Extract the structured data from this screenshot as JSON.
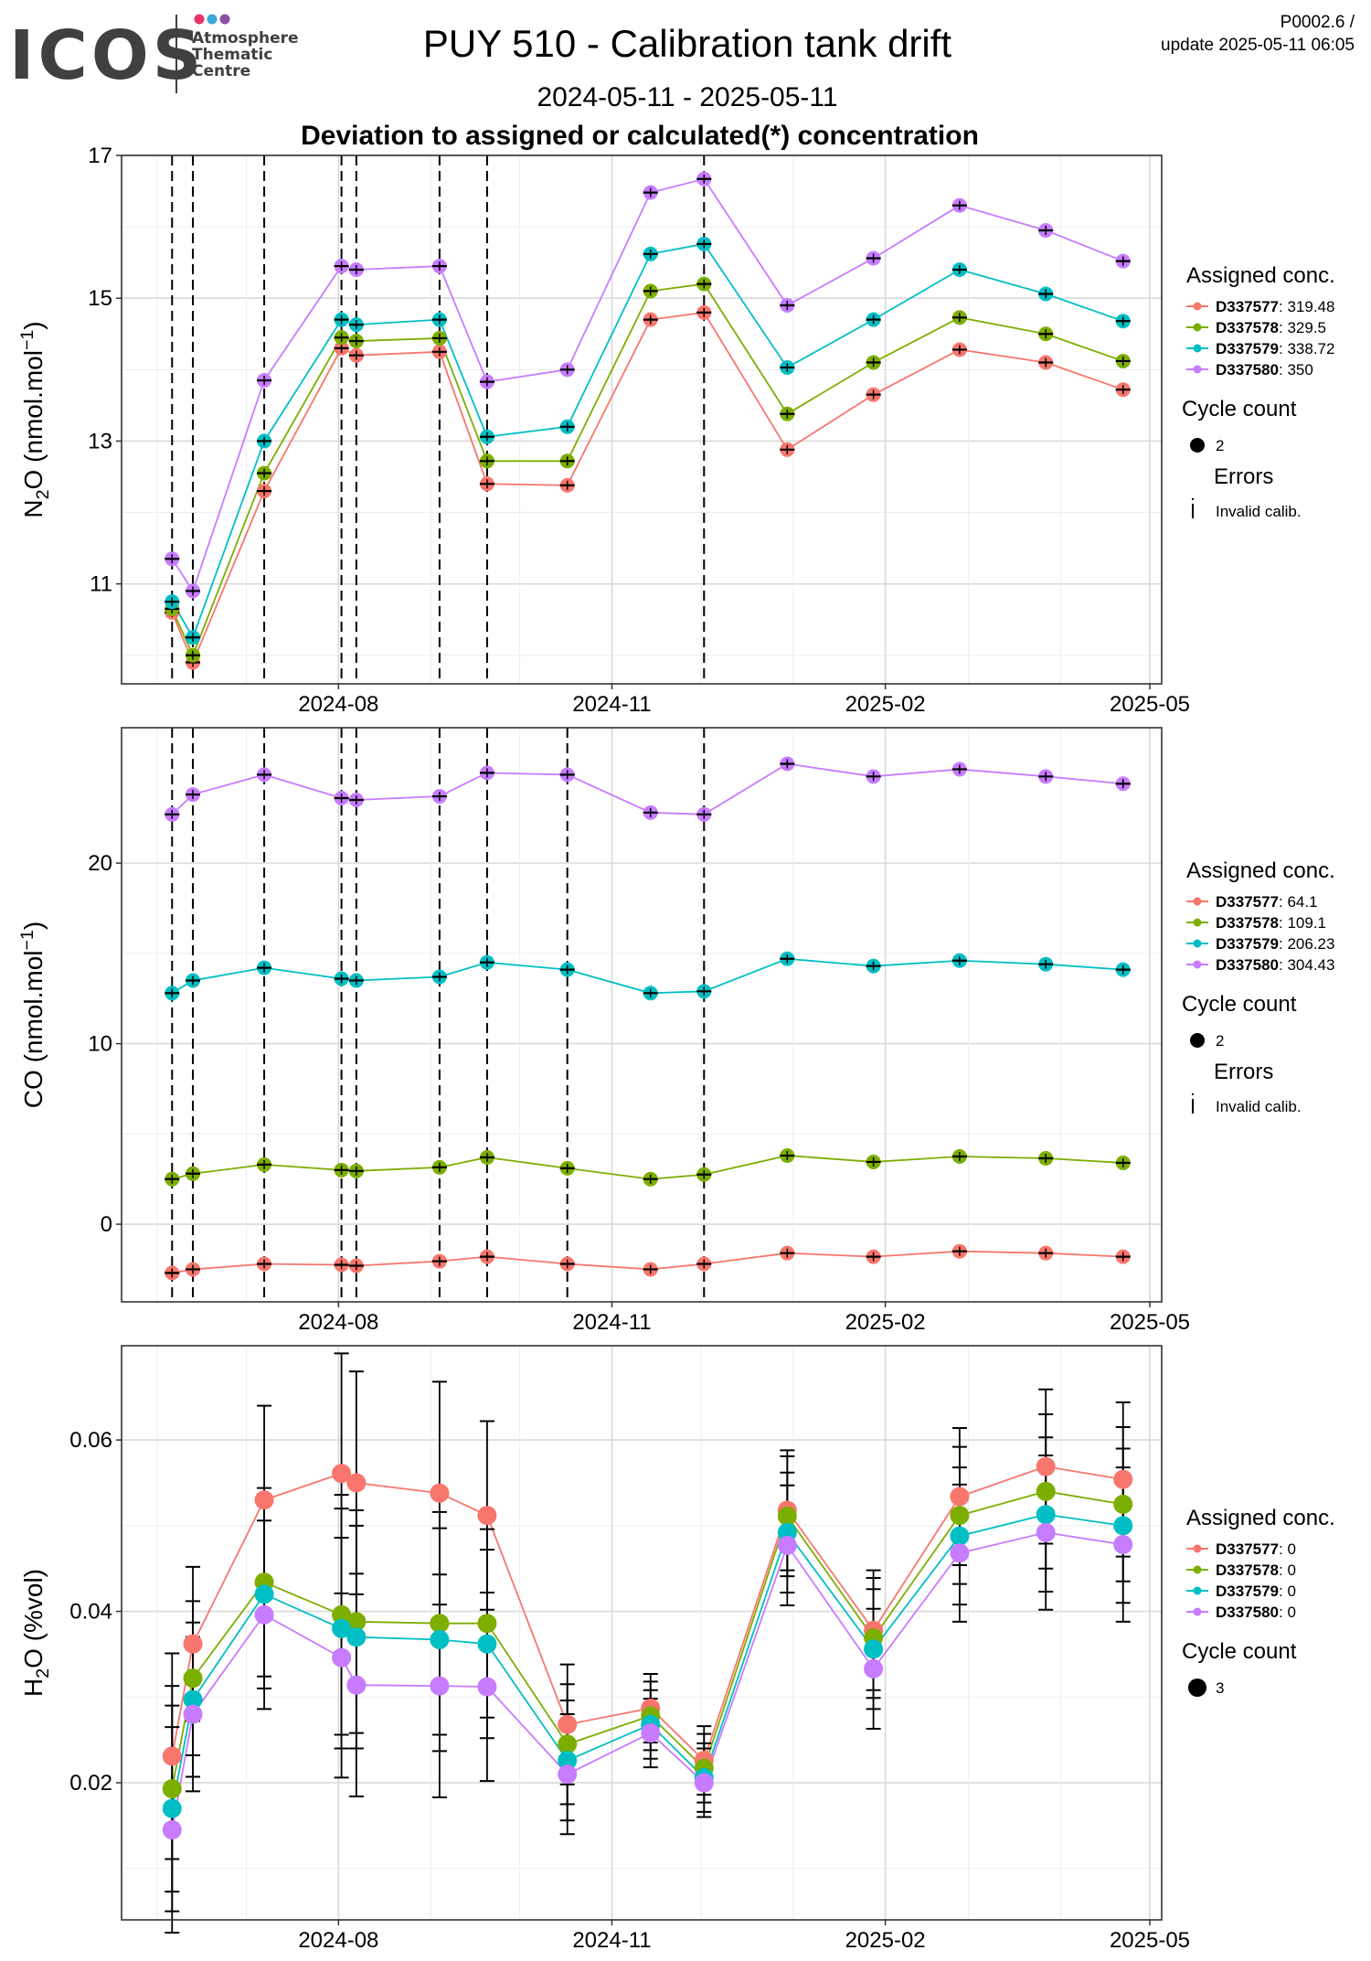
{
  "header": {
    "logo_text": "ICOS",
    "logo_sub": [
      "Atmosphere",
      "Thematic",
      "Centre"
    ],
    "logo_dot_colors": [
      "#e8336d",
      "#3da7dc",
      "#8d4fa3"
    ],
    "title": "PUY 510 - Calibration tank drift",
    "period": "2024-05-11 - 2025-05-11",
    "subtitle": "Deviation to assigned or calculated(*) concentration",
    "version": "P0002.6 /",
    "update": "update  2025-05-11 06:05"
  },
  "series_colors": [
    "#F8766D",
    "#7CAE00",
    "#00BFC4",
    "#C77CFF"
  ],
  "chart_data": [
    {
      "type": "line",
      "ylabel": "N2O (nmol.mol-1)",
      "ylim": [
        9.6,
        17.0
      ],
      "yticks": [
        11,
        13,
        15,
        17
      ],
      "xticks": [
        "2024-08",
        "2024-11",
        "2025-02",
        "2025-05"
      ],
      "x": [
        "2024-06-06",
        "2024-06-13",
        "2024-07-07",
        "2024-08-02",
        "2024-08-07",
        "2024-09-04",
        "2024-09-20",
        "2024-10-17",
        "2024-11-14",
        "2024-12-02",
        "2024-12-30",
        "2025-01-28",
        "2025-02-26",
        "2025-03-27",
        "2025-04-22"
      ],
      "invalid_dates": [
        "2024-06-06",
        "2024-06-13",
        "2024-07-07",
        "2024-08-02",
        "2024-08-07",
        "2024-09-04",
        "2024-09-20",
        "2024-12-02"
      ],
      "series": [
        {
          "name": "D337577",
          "values": [
            10.6,
            9.9,
            12.3,
            14.3,
            14.2,
            14.25,
            12.4,
            12.38,
            14.7,
            14.8,
            12.88,
            13.65,
            14.28,
            14.1,
            13.72
          ]
        },
        {
          "name": "D337578",
          "values": [
            10.65,
            10.0,
            12.55,
            14.45,
            14.4,
            14.44,
            12.72,
            12.72,
            15.1,
            15.2,
            13.38,
            14.1,
            14.73,
            14.5,
            14.12
          ]
        },
        {
          "name": "D337579",
          "values": [
            10.75,
            10.25,
            13.0,
            14.7,
            14.63,
            14.7,
            13.06,
            13.2,
            15.62,
            15.76,
            14.03,
            14.7,
            15.4,
            15.06,
            14.68
          ]
        },
        {
          "name": "D337580",
          "values": [
            11.35,
            10.9,
            13.85,
            15.45,
            15.4,
            15.45,
            13.83,
            14.0,
            16.48,
            16.67,
            14.9,
            15.56,
            16.3,
            15.95,
            15.52
          ]
        }
      ],
      "legend": {
        "title": "Assigned conc.",
        "entries": [
          {
            "name": "D337577",
            "value": ": 319.48"
          },
          {
            "name": "D337578",
            "value": ": 329.5"
          },
          {
            "name": "D337579",
            "value": ": 338.72"
          },
          {
            "name": "D337580",
            "value": ": 350"
          }
        ],
        "cycle_title": "Cycle count",
        "cycle_value": "2",
        "errors_title": "Errors",
        "errors_label": "Invalid calib."
      }
    },
    {
      "type": "line",
      "ylabel": "CO (nmol.mol-1)",
      "ylim": [
        -4.3,
        27.5
      ],
      "yticks": [
        0,
        10,
        20
      ],
      "xticks": [
        "2024-08",
        "2024-11",
        "2025-02",
        "2025-05"
      ],
      "x": [
        "2024-06-06",
        "2024-06-13",
        "2024-07-07",
        "2024-08-02",
        "2024-08-07",
        "2024-09-04",
        "2024-09-20",
        "2024-10-17",
        "2024-11-14",
        "2024-12-02",
        "2024-12-30",
        "2025-01-28",
        "2025-02-26",
        "2025-03-27",
        "2025-04-22"
      ],
      "invalid_dates": [
        "2024-06-06",
        "2024-06-13",
        "2024-07-07",
        "2024-08-02",
        "2024-08-07",
        "2024-09-04",
        "2024-09-20",
        "2024-10-17",
        "2024-12-02"
      ],
      "series": [
        {
          "name": "D337577",
          "values": [
            -2.7,
            -2.5,
            -2.2,
            -2.25,
            -2.3,
            -2.05,
            -1.8,
            -2.2,
            -2.5,
            -2.2,
            -1.6,
            -1.8,
            -1.5,
            -1.6,
            -1.8
          ]
        },
        {
          "name": "D337578",
          "values": [
            2.5,
            2.8,
            3.3,
            3.0,
            2.95,
            3.15,
            3.7,
            3.1,
            2.5,
            2.75,
            3.8,
            3.45,
            3.75,
            3.65,
            3.4
          ]
        },
        {
          "name": "D337579",
          "values": [
            12.8,
            13.5,
            14.2,
            13.6,
            13.5,
            13.7,
            14.5,
            14.1,
            12.8,
            12.9,
            14.7,
            14.3,
            14.6,
            14.4,
            14.1
          ]
        },
        {
          "name": "D337580",
          "values": [
            22.7,
            23.8,
            24.9,
            23.6,
            23.5,
            23.7,
            25.0,
            24.9,
            22.8,
            22.7,
            25.5,
            24.8,
            25.2,
            24.8,
            24.4
          ]
        }
      ],
      "legend": {
        "title": "Assigned conc.",
        "entries": [
          {
            "name": "D337577",
            "value": ": 64.1"
          },
          {
            "name": "D337578",
            "value": ": 109.1"
          },
          {
            "name": "D337579",
            "value": ": 206.23"
          },
          {
            "name": "D337580",
            "value": ": 304.43"
          }
        ],
        "cycle_title": "Cycle count",
        "cycle_value": "2",
        "errors_title": "Errors",
        "errors_label": "Invalid calib."
      }
    },
    {
      "type": "line",
      "ylabel": "H2O (%vol)",
      "ylim": [
        0.004,
        0.071
      ],
      "yticks": [
        0.02,
        0.04,
        0.06
      ],
      "ytick_labels": [
        "0.02",
        "0.04",
        "0.06"
      ],
      "xticks": [
        "2024-08",
        "2024-11",
        "2025-02",
        "2025-05"
      ],
      "x": [
        "2024-06-06",
        "2024-06-13",
        "2024-07-07",
        "2024-08-02",
        "2024-08-07",
        "2024-09-04",
        "2024-09-20",
        "2024-10-17",
        "2024-11-14",
        "2024-12-02",
        "2024-12-30",
        "2025-01-28",
        "2025-02-26",
        "2025-03-27",
        "2025-04-22"
      ],
      "series": [
        {
          "name": "D337577",
          "values": [
            0.0231,
            0.0362,
            0.053,
            0.0561,
            0.055,
            0.0538,
            0.0512,
            0.0268,
            0.0287,
            0.0226,
            0.0518,
            0.0378,
            0.0534,
            0.0569,
            0.0554
          ]
        },
        {
          "name": "D337578",
          "values": [
            0.0193,
            0.0322,
            0.0434,
            0.0396,
            0.0388,
            0.0386,
            0.0386,
            0.0245,
            0.0278,
            0.0217,
            0.0511,
            0.0369,
            0.0512,
            0.054,
            0.0525
          ]
        },
        {
          "name": "D337579",
          "values": [
            0.017,
            0.0297,
            0.042,
            0.038,
            0.037,
            0.0367,
            0.0362,
            0.0226,
            0.0268,
            0.0206,
            0.0492,
            0.0356,
            0.0488,
            0.0513,
            0.05
          ]
        },
        {
          "name": "D337580",
          "values": [
            0.0145,
            0.028,
            0.0396,
            0.0346,
            0.0314,
            0.0313,
            0.0312,
            0.021,
            0.0258,
            0.02,
            0.0477,
            0.0333,
            0.0468,
            0.0492,
            0.0478
          ]
        }
      ],
      "errors": [
        0.012,
        0.009,
        0.011,
        0.014,
        0.013,
        0.013,
        0.011,
        0.007,
        0.004,
        0.004,
        0.007,
        0.007,
        0.008,
        0.009,
        0.009
      ],
      "legend": {
        "title": "Assigned conc.",
        "entries": [
          {
            "name": "D337577",
            "value": ": 0"
          },
          {
            "name": "D337578",
            "value": ": 0"
          },
          {
            "name": "D337579",
            "value": ": 0"
          },
          {
            "name": "D337580",
            "value": ": 0"
          }
        ],
        "cycle_title": "Cycle count",
        "cycle_value": "3"
      }
    }
  ]
}
